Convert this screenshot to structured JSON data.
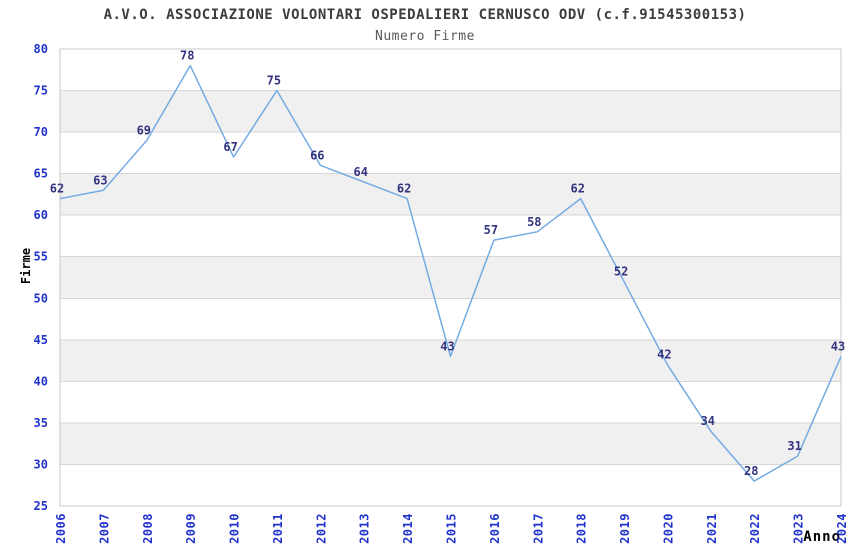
{
  "chart": {
    "title": "A.V.O. ASSOCIAZIONE VOLONTARI OSPEDALIERI CERNUSCO ODV (c.f.91545300153)",
    "subtitle": "Numero Firme",
    "y_axis_title": "Firme",
    "x_axis_title": "Anno"
  },
  "chart_data": {
    "type": "line",
    "title": "A.V.O. ASSOCIAZIONE VOLONTARI OSPEDALIERI CERNUSCO ODV (c.f.91545300153)",
    "subtitle": "Numero Firme",
    "xlabel": "Anno",
    "ylabel": "Firme",
    "categories": [
      "2006",
      "2007",
      "2008",
      "2009",
      "2010",
      "2011",
      "2012",
      "2013",
      "2014",
      "2015",
      "2016",
      "2017",
      "2018",
      "2019",
      "2020",
      "2021",
      "2022",
      "2023",
      "2024"
    ],
    "values": [
      62,
      63,
      69,
      78,
      67,
      75,
      66,
      64,
      62,
      43,
      57,
      58,
      62,
      52,
      42,
      34,
      28,
      31,
      43
    ],
    "point_labels_shown": true,
    "ylim": [
      25,
      80
    ],
    "ytick_step": 5,
    "grid": "horizontal",
    "band_fill": "alternating-5-unit-bands",
    "legend": "none",
    "style": {
      "line_color": "#74abe2",
      "band_color": "#f0f0f0",
      "grid_color": "#d6d6d6",
      "border_color": "#c9c9c9",
      "tick_label_color": "#2233cc",
      "point_label_color": "#333380",
      "title_color": "#3c3c3c",
      "subtitle_color": "#5a5a5a",
      "axis_title_color": "#000000",
      "background_color": "#ffffff"
    }
  }
}
